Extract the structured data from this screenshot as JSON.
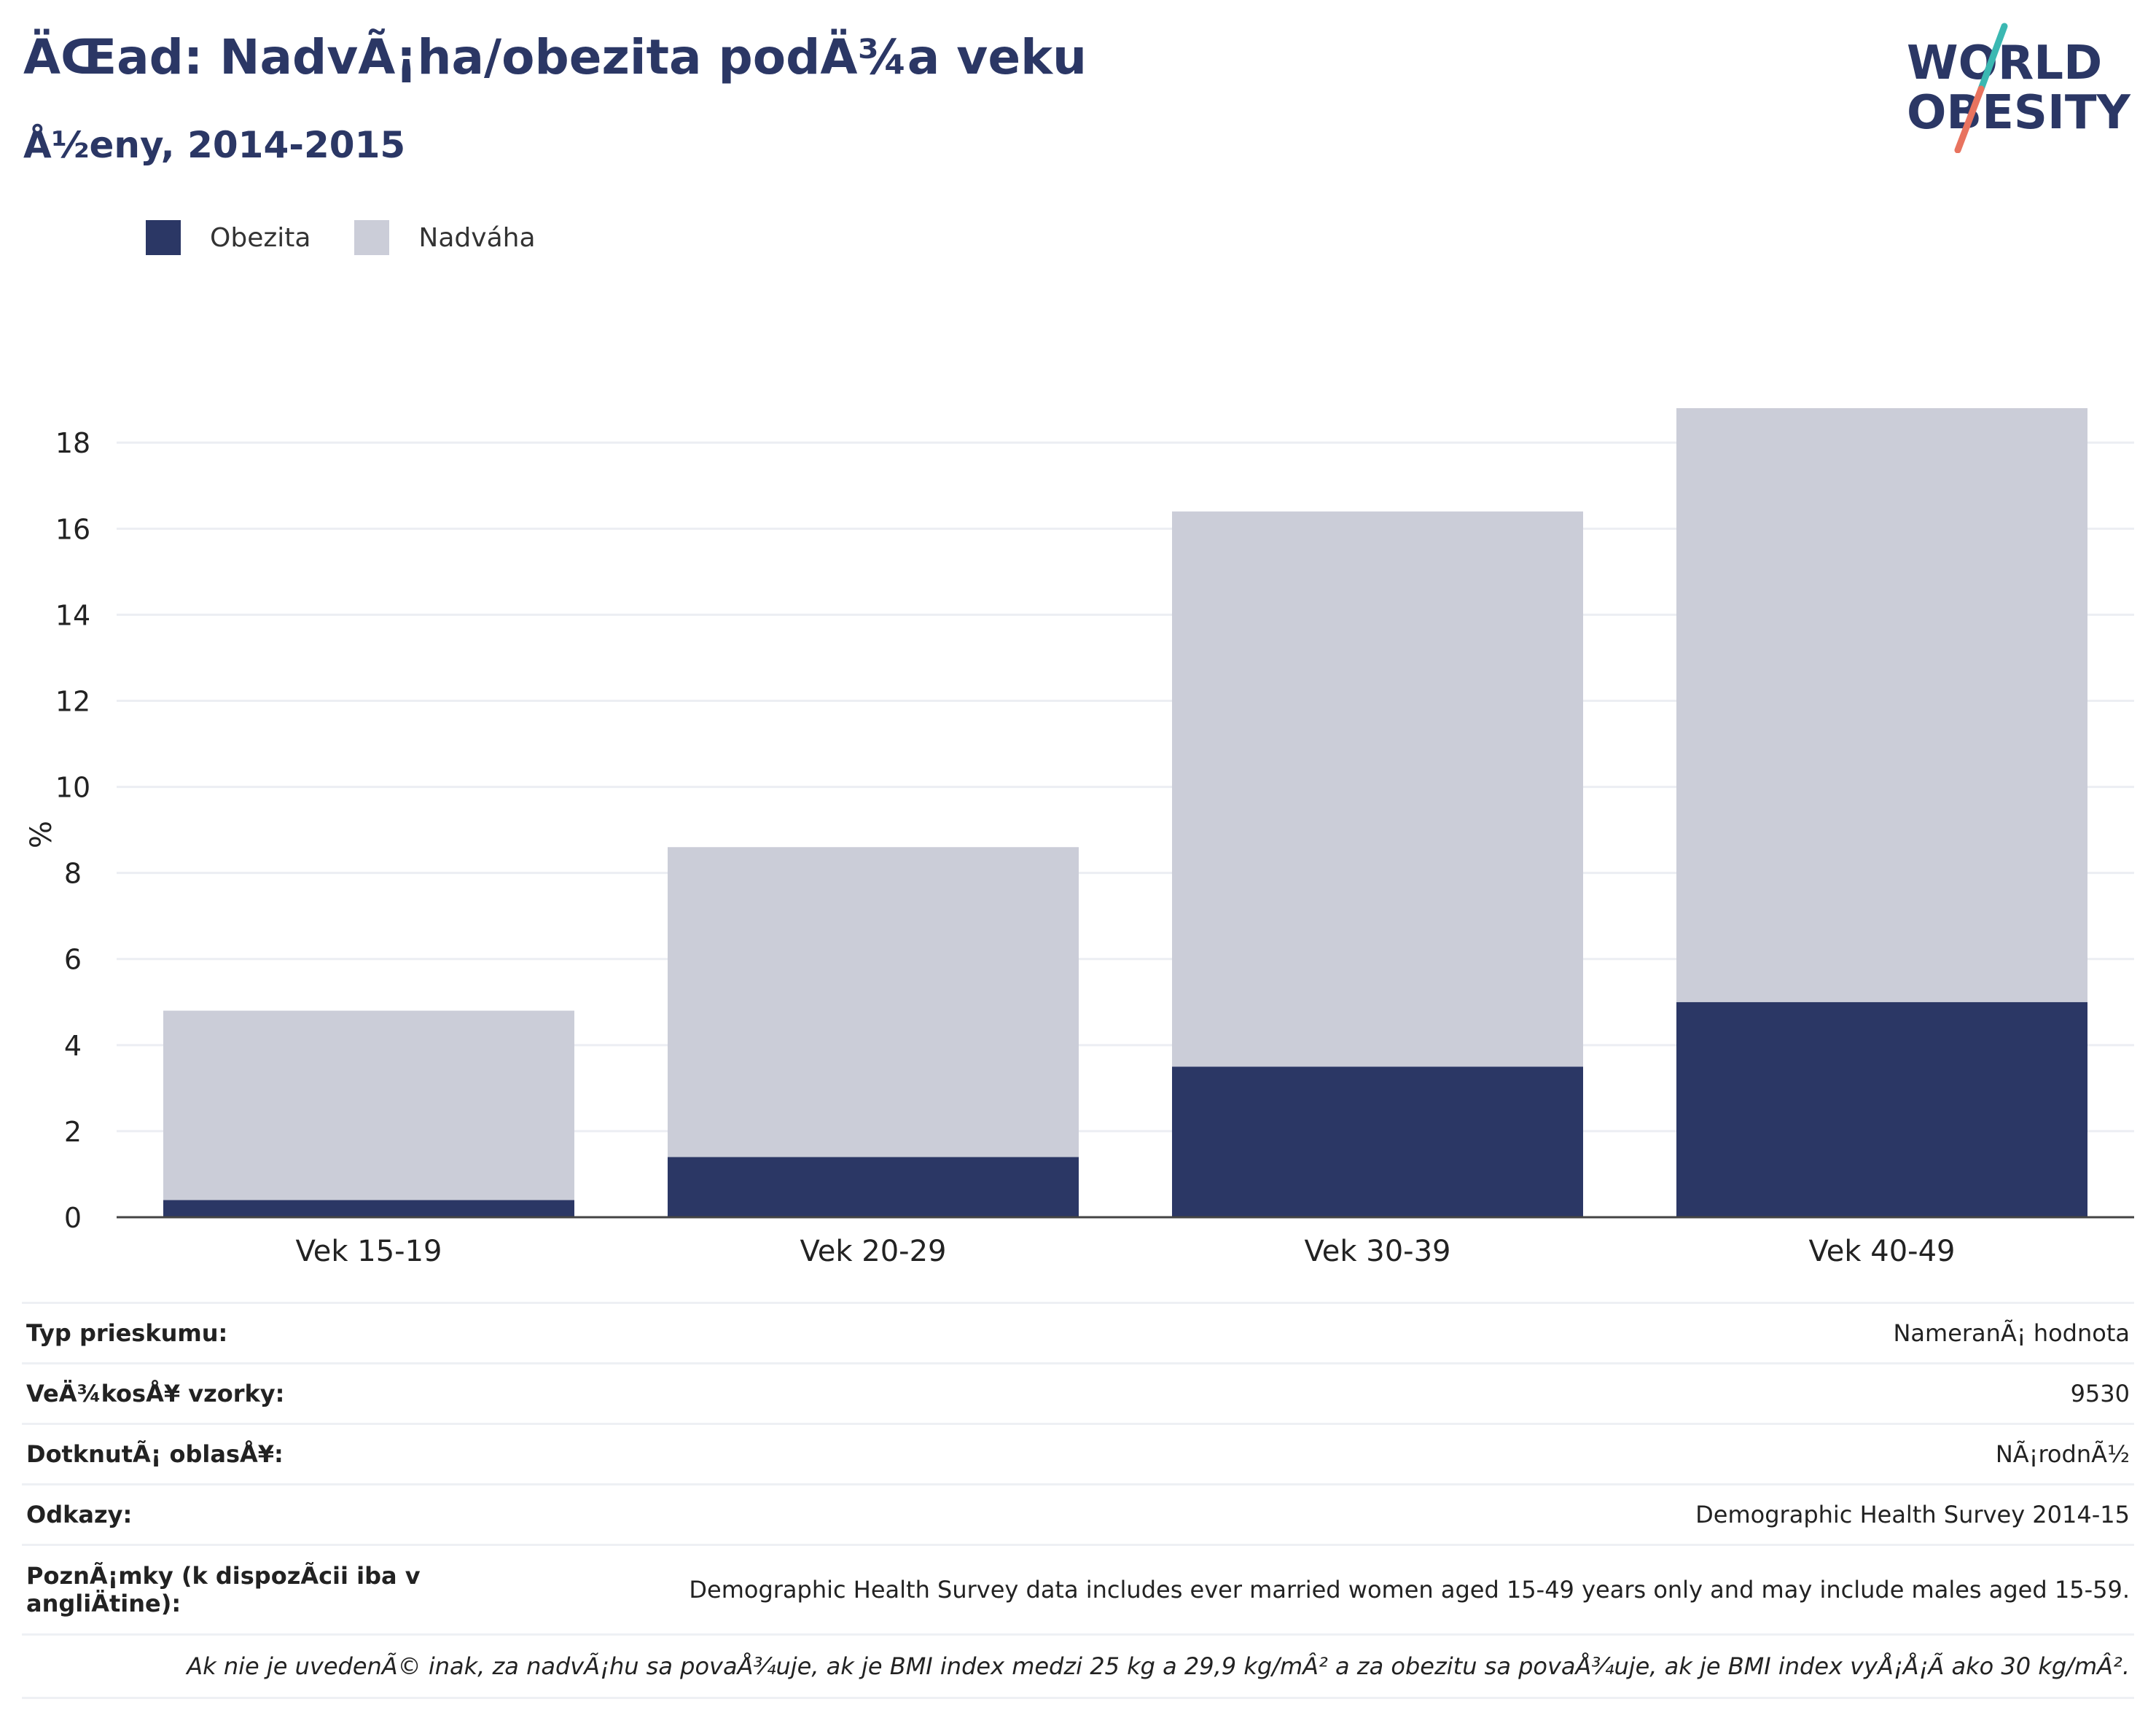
{
  "header": {
    "title": "ÄŒad: NadvÃ¡ha/obezita podÄ¾a veku",
    "subtitle": "Å½eny, 2014-2015"
  },
  "logo": {
    "line1": "WORLD",
    "line2": "OBESITY",
    "accent_teal": "#3bb8b2",
    "accent_coral": "#e8735f",
    "text_color": "#2b3765"
  },
  "legend": [
    {
      "label": "Obezita",
      "color": "#2b3765"
    },
    {
      "label": "Nadváha",
      "color": "#cbcdd8"
    }
  ],
  "chart_data": {
    "type": "bar",
    "stacked": true,
    "categories": [
      "Vek 15-19",
      "Vek 20-29",
      "Vek 30-39",
      "Vek 40-49"
    ],
    "series": [
      {
        "name": "Obezita",
        "values": [
          0.4,
          1.4,
          3.5,
          5.0
        ],
        "color": "#2b3765"
      },
      {
        "name": "Nadváha",
        "values": [
          4.4,
          7.2,
          12.9,
          13.8
        ],
        "color": "#cbcdd8"
      }
    ],
    "ylabel": "%",
    "ylim": [
      0,
      18.8
    ],
    "yticks": [
      0,
      2,
      4,
      6,
      8,
      10,
      12,
      14,
      16,
      18
    ],
    "grid": true,
    "legend_position": "top-left"
  },
  "info": {
    "rows": [
      {
        "label": "Typ prieskumu:",
        "value": "NameranÃ¡ hodnota"
      },
      {
        "label": "VeÄ¾kosÅ¥ vzorky:",
        "value": "9530"
      },
      {
        "label": "DotknutÃ¡ oblasÅ¥:",
        "value": "NÃ¡rodnÃ½"
      },
      {
        "label": "Odkazy:",
        "value": "Demographic Health Survey 2014-15"
      },
      {
        "label": "PoznÃ¡mky (k dispozÃcii iba v angliÄ\u001ftine):",
        "value": "Demographic Health Survey data includes ever married women aged 15-49 years only and may include males aged 15-59."
      }
    ],
    "footnote": "Ak nie je uvedenÃ© inak, za nadvÃ¡hu sa povaÅ¾uje, ak je BMI index medzi 25 kg a 29,9 kg/mÂ² a za obezitu sa povaÅ¾uje, ak je BMI index vyÅ¡Å¡Ã ako 30 kg/mÂ²."
  }
}
